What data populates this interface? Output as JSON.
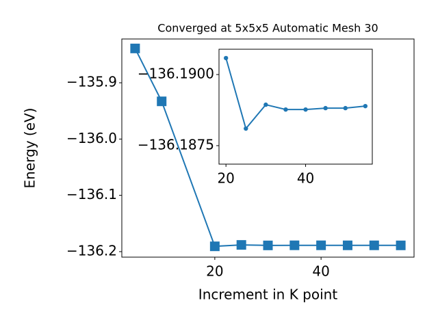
{
  "chart_data": [
    {
      "type": "line",
      "title": "Converged at 5x5x5 Automatic Mesh 30",
      "xlabel": "Increment in K point",
      "ylabel": "Energy (eV)",
      "marker": "square",
      "x": [
        5,
        10,
        20,
        25,
        30,
        35,
        40,
        45,
        50,
        55
      ],
      "series": [
        {
          "color": "#1f77b4",
          "values": [
            -135.839,
            -135.933,
            -136.19058,
            -136.1881,
            -136.18894,
            -136.18877,
            -136.18877,
            -136.18882,
            -136.18882,
            -136.18889
          ]
        }
      ],
      "xlim": [
        2.5,
        57.5
      ],
      "ylim": [
        -136.2098,
        -135.8222
      ],
      "xticks": [
        20,
        40
      ],
      "yticks": [
        {
          "value": -136.2,
          "label": "−136.2"
        },
        {
          "value": -136.1,
          "label": "−136.1"
        },
        {
          "value": -136.0,
          "label": "−136.0"
        },
        {
          "value": -135.9,
          "label": "−135.9"
        }
      ]
    },
    {
      "type": "line",
      "marker": "circle",
      "x": [
        20,
        25,
        30,
        35,
        40,
        45,
        50,
        55
      ],
      "series": [
        {
          "color": "#1f77b4",
          "values": [
            -136.19058,
            -136.1881,
            -136.18894,
            -136.18877,
            -136.18877,
            -136.18882,
            -136.18882,
            -136.18889
          ]
        }
      ],
      "xlim": [
        18.25,
        56.75
      ],
      "ylim": [
        -136.18685,
        -136.19089
      ],
      "xticks": [
        20,
        40
      ],
      "yticks": [
        {
          "value": -136.1875,
          "label": "−136.1875"
        },
        {
          "value": -136.19,
          "label": "−136.1900"
        }
      ]
    }
  ]
}
